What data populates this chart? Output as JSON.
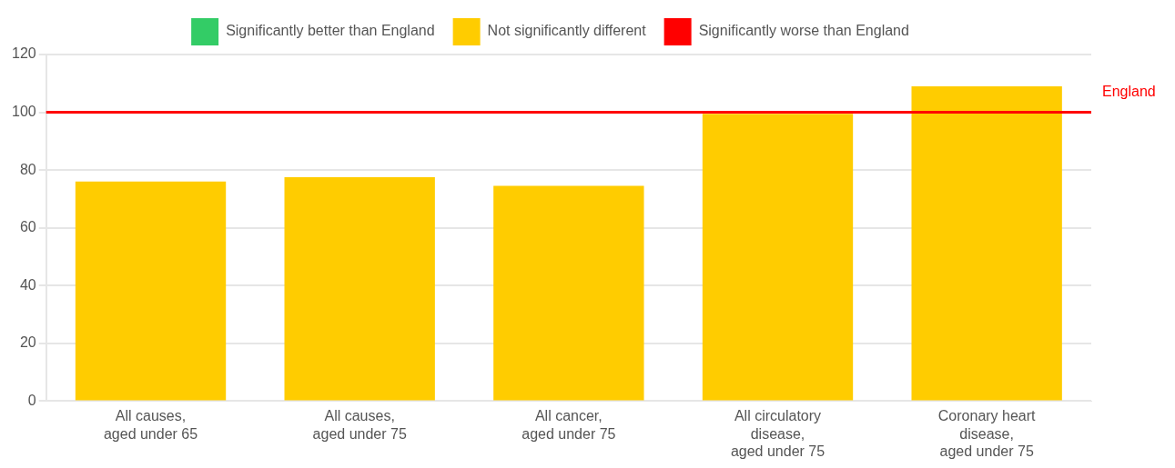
{
  "chart_data": {
    "type": "bar",
    "stacked": true,
    "categories": [
      "All causes, aged under 65",
      "All causes, aged under 75",
      "All cancer, aged under 75",
      "All circulatory disease, aged under 75",
      "Coronary heart disease, aged under 75"
    ],
    "series": [
      {
        "name": "Significantly better than England",
        "color": "#33cc66",
        "values": [
          null,
          null,
          null,
          null,
          null
        ]
      },
      {
        "name": "Not significantly different",
        "color": "#ffcc00",
        "values": [
          76,
          77.5,
          74.5,
          99.5,
          109
        ]
      },
      {
        "name": "Significantly worse than England",
        "color": "#ff0000",
        "values": [
          null,
          null,
          null,
          null,
          null
        ]
      }
    ],
    "ylim": [
      0,
      120
    ],
    "yticks": [
      0,
      20,
      40,
      60,
      80,
      100,
      120
    ],
    "grid": "y",
    "legend": "top",
    "ref_lines": [
      {
        "axis": "y",
        "value": 100,
        "label": "England",
        "color": "#ff0000"
      }
    ]
  }
}
